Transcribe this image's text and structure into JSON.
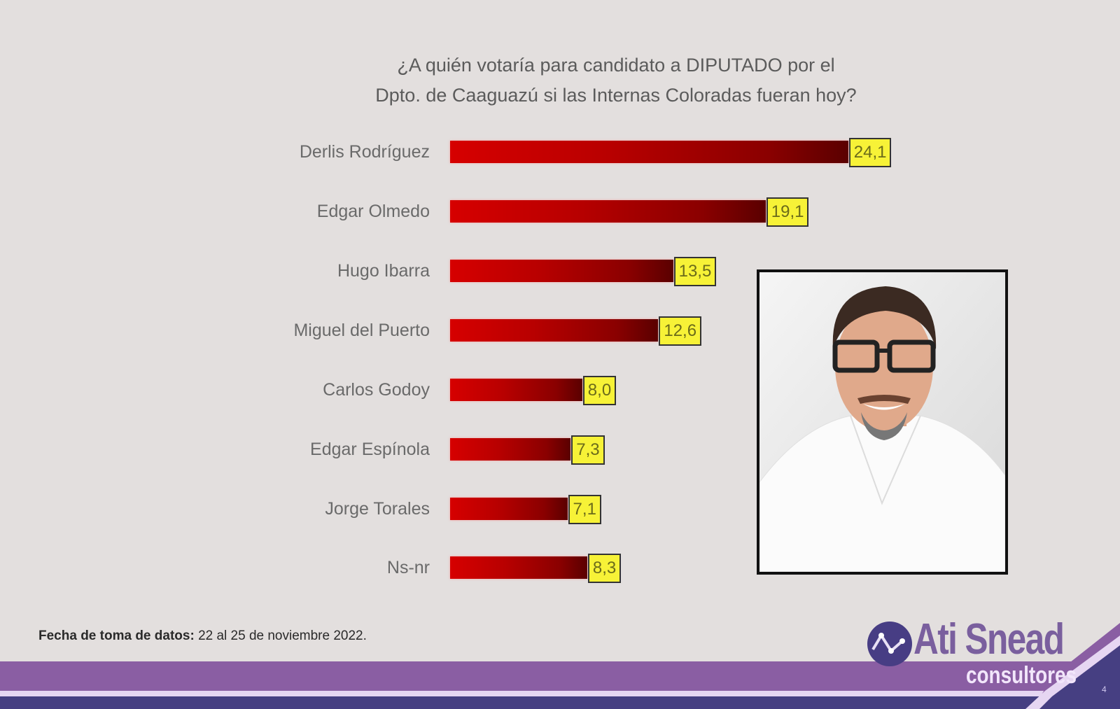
{
  "title": {
    "line1": "¿A quién votaría para candidato a DIPUTADO por el",
    "line2": "Dpto. de Caaguazú si las Internas Coloradas fueran hoy?"
  },
  "rows": [
    {
      "label": "Derlis Rodríguez",
      "value": "24,1"
    },
    {
      "label": "Edgar Olmedo",
      "value": "19,1"
    },
    {
      "label": "Hugo Ibarra",
      "value": "13,5"
    },
    {
      "label": "Miguel del Puerto",
      "value": "12,6"
    },
    {
      "label": "Carlos Godoy",
      "value": "8,0"
    },
    {
      "label": "Edgar Espínola",
      "value": "7,3"
    },
    {
      "label": "Jorge Torales",
      "value": "7,1"
    },
    {
      "label": "Ns-nr",
      "value": "8,3"
    }
  ],
  "footnote": {
    "label": "Fecha de toma de datos:",
    "value": "22 al 25 de noviembre 2022."
  },
  "logo": {
    "name": "Ati Snead",
    "subtitle": "consultores"
  },
  "page_number": "4",
  "colors": {
    "bar_start": "#d60000",
    "bar_end": "#5a0000",
    "value_box": "#f7f237",
    "band_purple": "#8a5ea3",
    "band_navy": "#463f82",
    "background": "#e3dfde"
  },
  "chart_data": {
    "type": "bar",
    "orientation": "horizontal",
    "title": "¿A quién votaría para candidato a DIPUTADO por el Dpto. de Caaguazú si las Internas Coloradas fueran hoy?",
    "categories": [
      "Derlis Rodríguez",
      "Edgar Olmedo",
      "Hugo Ibarra",
      "Miguel del Puerto",
      "Carlos Godoy",
      "Edgar Espínola",
      "Jorge Torales",
      "Ns-nr"
    ],
    "values": [
      24.1,
      19.1,
      13.5,
      12.6,
      8.0,
      7.3,
      7.1,
      8.3
    ],
    "xlabel": "",
    "ylabel": "",
    "unit": "%",
    "data_labels": true,
    "grid": false,
    "legend": "none"
  }
}
